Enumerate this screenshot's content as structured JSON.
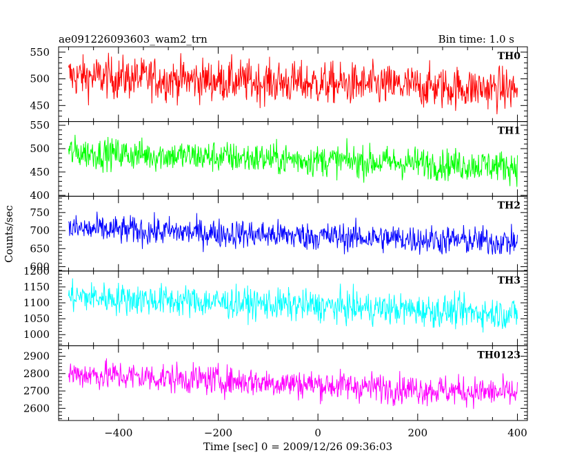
{
  "header": {
    "title": "ae091226093603_wam2_trn",
    "bin_time": "Bin time: 1.0 s"
  },
  "chart_data": {
    "type": "line",
    "xlabel": "Time [sec] 0 = 2009/12/26 09:36:03",
    "ylabel": "Counts/sec",
    "xlim": [
      -520,
      420
    ],
    "x_range_data": [
      -500,
      400
    ],
    "x_ticks": [
      -400,
      -200,
      0,
      200,
      400
    ],
    "x_tick_labels": [
      "−400",
      "−200",
      "0",
      "200",
      "400"
    ],
    "bin_time_s": 1.0,
    "panels": [
      {
        "label": "TH0",
        "color": "#ff0000",
        "ylim": [
          420,
          560
        ],
        "y_ticks": [
          450,
          500,
          550
        ],
        "trend": [
          [
            -500,
            505
          ],
          [
            400,
            480
          ]
        ],
        "scatter": 28
      },
      {
        "label": "TH1",
        "color": "#00ff00",
        "ylim": [
          398,
          558
        ],
        "y_ticks": [
          400,
          450,
          500,
          550
        ],
        "trend": [
          [
            -500,
            492
          ],
          [
            400,
            462
          ]
        ],
        "scatter": 24
      },
      {
        "label": "TH2",
        "color": "#0000ff",
        "ylim": [
          588,
          795
        ],
        "y_ticks": [
          600,
          650,
          700,
          750
        ],
        "trend": [
          [
            -500,
            705
          ],
          [
            400,
            668
          ]
        ],
        "scatter": 28
      },
      {
        "label": "TH3",
        "color": "#00ffff",
        "ylim": [
          965,
          1200
        ],
        "y_ticks": [
          1000,
          1050,
          1100,
          1150,
          1200
        ],
        "trend": [
          [
            -500,
            1120
          ],
          [
            400,
            1065
          ]
        ],
        "scatter": 35
      },
      {
        "label": "TH0123",
        "color": "#ff00ff",
        "ylim": [
          2530,
          2960
        ],
        "y_ticks": [
          2600,
          2700,
          2800,
          2900
        ],
        "trend": [
          [
            -500,
            2800
          ],
          [
            400,
            2685
          ]
        ],
        "scatter": 60
      }
    ]
  }
}
